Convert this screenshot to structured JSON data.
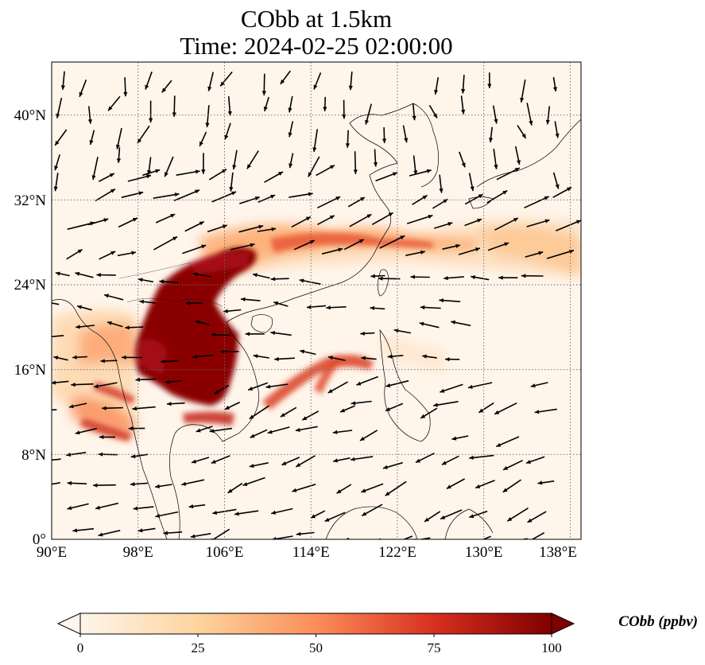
{
  "title": {
    "line1": "CObb at 1.5km",
    "line2": "Time: 2024-02-25 02:00:00"
  },
  "map": {
    "lon_range": [
      90,
      139
    ],
    "lat_range": [
      0,
      45
    ],
    "lon_ticks": [
      {
        "value": 90,
        "label": "90°E"
      },
      {
        "value": 98,
        "label": "98°E"
      },
      {
        "value": 106,
        "label": "106°E"
      },
      {
        "value": 114,
        "label": "114°E"
      },
      {
        "value": 122,
        "label": "122°E"
      },
      {
        "value": 130,
        "label": "130°E"
      },
      {
        "value": 138,
        "label": "138°E"
      }
    ],
    "lat_ticks": [
      {
        "value": 0,
        "label": "0°"
      },
      {
        "value": 8,
        "label": "8°N"
      },
      {
        "value": 16,
        "label": "16°N"
      },
      {
        "value": 24,
        "label": "24°N"
      },
      {
        "value": 32,
        "label": "32°N"
      },
      {
        "value": 40,
        "label": "40°N"
      }
    ],
    "gridlines": "dotted"
  },
  "colorbar": {
    "label": "CObb (ppbv)",
    "ticks": [
      {
        "value": 0,
        "label": "0"
      },
      {
        "value": 25,
        "label": "25"
      },
      {
        "value": 50,
        "label": "50"
      },
      {
        "value": 75,
        "label": "75"
      },
      {
        "value": 100,
        "label": "100"
      }
    ],
    "range": [
      0,
      100
    ],
    "extend": "both",
    "colormap": [
      "#fff5eb",
      "#fdd49e",
      "#fc8d59",
      "#d7301f",
      "#7f0000"
    ]
  }
}
